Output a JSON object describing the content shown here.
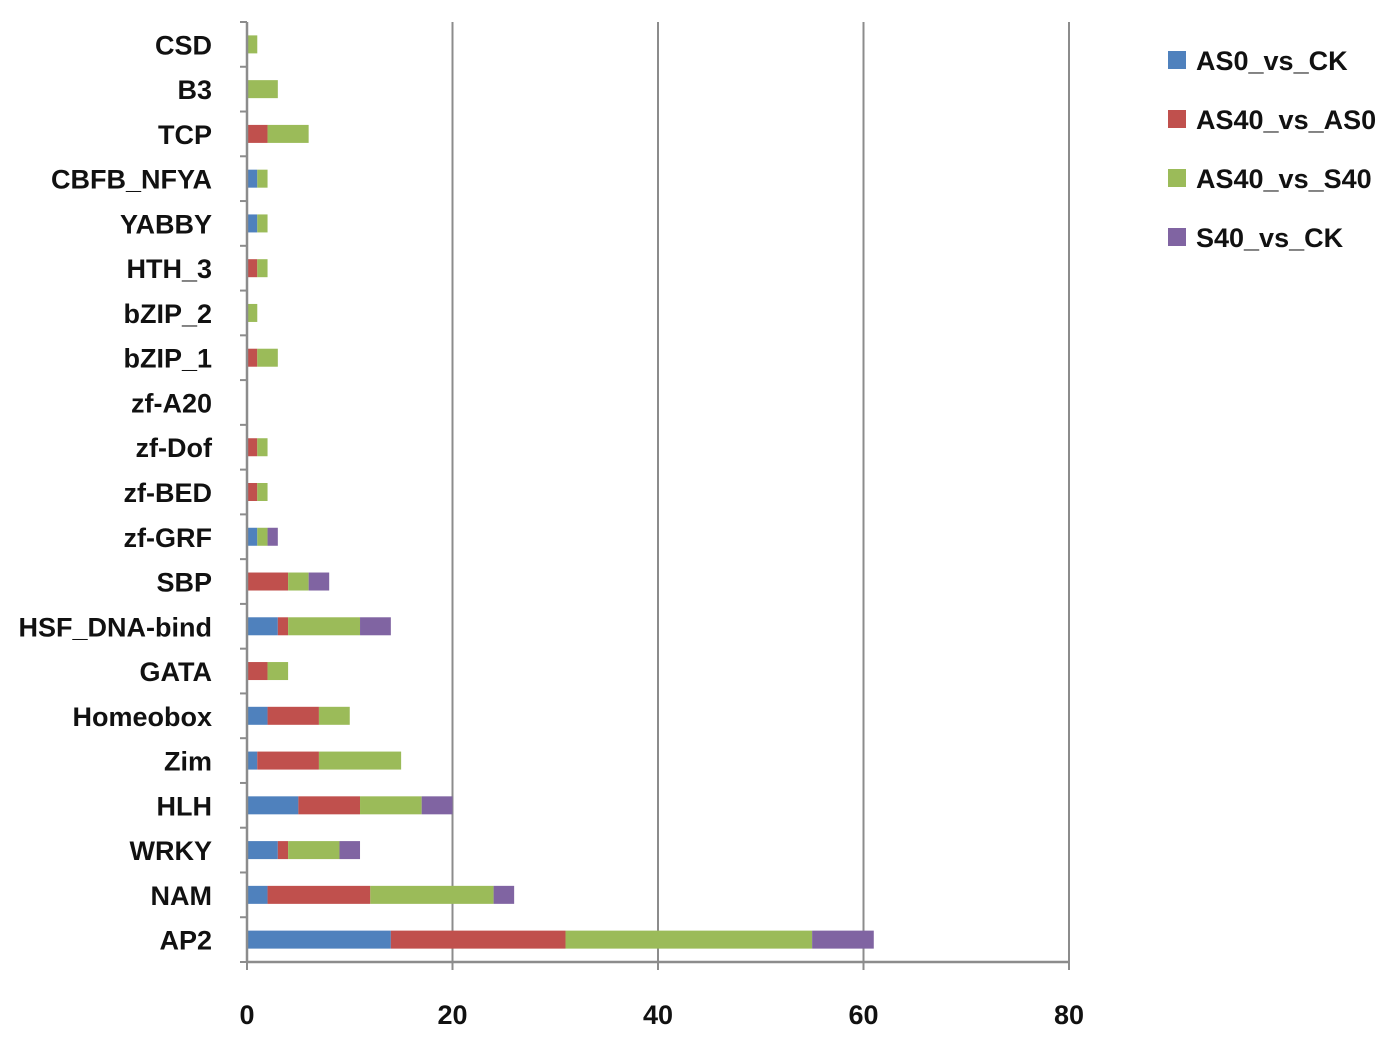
{
  "chart_data": {
    "type": "bar",
    "orientation": "horizontal",
    "stacked": true,
    "title": "",
    "xlabel": "",
    "ylabel": "",
    "xlim": [
      0,
      80
    ],
    "x_ticks": [
      "0",
      "20",
      "40",
      "60",
      "80"
    ],
    "grid": "vertical gridlines",
    "legend_position": "right",
    "categories": [
      "AP2",
      "NAM",
      "WRKY",
      "HLH",
      "Zim",
      "Homeobox",
      "GATA",
      "HSF_DNA-bind",
      "SBP",
      "zf-GRF",
      "zf-BED",
      "zf-Dof",
      "zf-A20",
      "bZIP_1",
      "bZIP_2",
      "HTH_3",
      "YABBY",
      "CBFB_NFYA",
      "TCP",
      "B3",
      "CSD"
    ],
    "series": [
      {
        "name": "AS0_vs_CK",
        "color": "#4f81bd",
        "values": [
          14,
          2,
          3,
          5,
          1,
          2,
          0,
          3,
          0,
          1,
          0,
          0,
          0,
          0,
          0,
          0,
          1,
          1,
          0,
          0,
          0
        ]
      },
      {
        "name": "AS40_vs_AS0",
        "color": "#c0504d",
        "values": [
          17,
          10,
          1,
          6,
          6,
          5,
          2,
          1,
          4,
          0,
          1,
          1,
          0,
          1,
          0,
          1,
          0,
          0,
          2,
          0,
          0
        ]
      },
      {
        "name": "AS40_vs_S40",
        "color": "#9bbb59",
        "values": [
          24,
          12,
          5,
          6,
          8,
          3,
          2,
          7,
          2,
          1,
          1,
          1,
          0,
          2,
          1,
          1,
          1,
          1,
          4,
          3,
          1
        ]
      },
      {
        "name": "S40_vs_CK",
        "color": "#8064a2",
        "values": [
          6,
          2,
          2,
          3,
          0,
          0,
          0,
          3,
          2,
          1,
          0,
          0,
          0,
          0,
          0,
          0,
          0,
          0,
          0,
          0,
          0
        ]
      }
    ]
  }
}
